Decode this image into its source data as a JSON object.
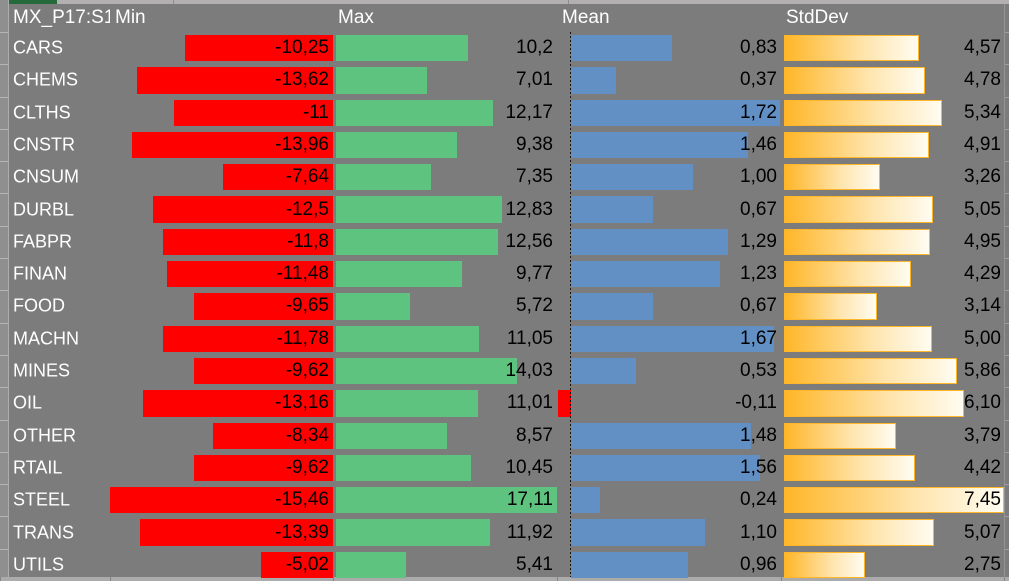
{
  "sheet": {
    "name_cell": "MX_P17:S1"
  },
  "columns": {
    "min": "Min",
    "max": "Max",
    "mean": "Mean",
    "stddev": "StdDev"
  },
  "rows": [
    {
      "label": "CARS",
      "min": "-10,25",
      "max": "10,2",
      "mean": "0,83",
      "stddev": "4,57"
    },
    {
      "label": "CHEMS",
      "min": "-13,62",
      "max": "7,01",
      "mean": "0,37",
      "stddev": "4,78"
    },
    {
      "label": "CLTHS",
      "min": "-11",
      "max": "12,17",
      "mean": "1,72",
      "stddev": "5,34"
    },
    {
      "label": "CNSTR",
      "min": "-13,96",
      "max": "9,38",
      "mean": "1,46",
      "stddev": "4,91"
    },
    {
      "label": "CNSUM",
      "min": "-7,64",
      "max": "7,35",
      "mean": "1,00",
      "stddev": "3,26"
    },
    {
      "label": "DURBL",
      "min": "-12,5",
      "max": "12,83",
      "mean": "0,67",
      "stddev": "5,05"
    },
    {
      "label": "FABPR",
      "min": "-11,8",
      "max": "12,56",
      "mean": "1,29",
      "stddev": "4,95"
    },
    {
      "label": "FINAN",
      "min": "-11,48",
      "max": "9,77",
      "mean": "1,23",
      "stddev": "4,29"
    },
    {
      "label": "FOOD",
      "min": "-9,65",
      "max": "5,72",
      "mean": "0,67",
      "stddev": "3,14"
    },
    {
      "label": "MACHN",
      "min": "-11,78",
      "max": "11,05",
      "mean": "1,67",
      "stddev": "5,00"
    },
    {
      "label": "MINES",
      "min": "-9,62",
      "max": "14,03",
      "mean": "0,53",
      "stddev": "5,86"
    },
    {
      "label": "OIL",
      "min": "-13,16",
      "max": "11,01",
      "mean": "-0,11",
      "stddev": "6,10"
    },
    {
      "label": "OTHER",
      "min": "-8,34",
      "max": "8,57",
      "mean": "1,48",
      "stddev": "3,79"
    },
    {
      "label": "RTAIL",
      "min": "-9,62",
      "max": "10,45",
      "mean": "1,56",
      "stddev": "4,42"
    },
    {
      "label": "STEEL",
      "min": "-15,46",
      "max": "17,11",
      "mean": "0,24",
      "stddev": "7,45"
    },
    {
      "label": "TRANS",
      "min": "-13,39",
      "max": "11,92",
      "mean": "1,10",
      "stddev": "5,07"
    },
    {
      "label": "UTILS",
      "min": "-5,02",
      "max": "5,41",
      "mean": "0,96",
      "stddev": "2,75"
    }
  ],
  "colors": {
    "cell_fill_gray": "#7C7C7C",
    "negative_bar_red": "#FF0000",
    "max_bar_green": "#5FC380",
    "mean_bar_blue": "#6290C5",
    "stddev_bar_orange": "#FFB628",
    "header_text": "#FFFFFF",
    "value_text": "#000000",
    "top_accent_green": "#26693B"
  }
}
